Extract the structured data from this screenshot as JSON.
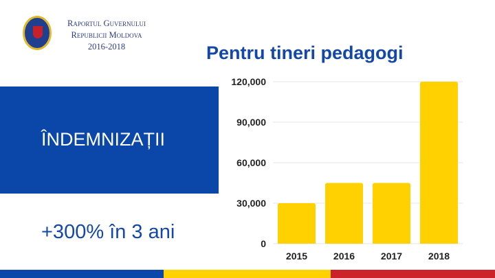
{
  "header": {
    "line1": "Raportul Guvernului",
    "line2": "Republicii Moldova",
    "line3": "2016-2018"
  },
  "label": "ÎNDEMNIZAȚII",
  "growth": "+300% în 3 ani",
  "colors": {
    "blue": "#0a47a9",
    "yellow": "#ffd100",
    "red": "#cc2229"
  },
  "chart_data": {
    "type": "bar",
    "title": "Pentru tineri pedagogi",
    "categories": [
      "2015",
      "2016",
      "2017",
      "2018"
    ],
    "values": [
      30000,
      45000,
      45000,
      120000
    ],
    "yticks": [
      "0",
      "30,000",
      "60,000",
      "90,000",
      "120,000"
    ],
    "ylim": [
      0,
      120000
    ],
    "grid": true,
    "bar_color": "#ffd100"
  }
}
